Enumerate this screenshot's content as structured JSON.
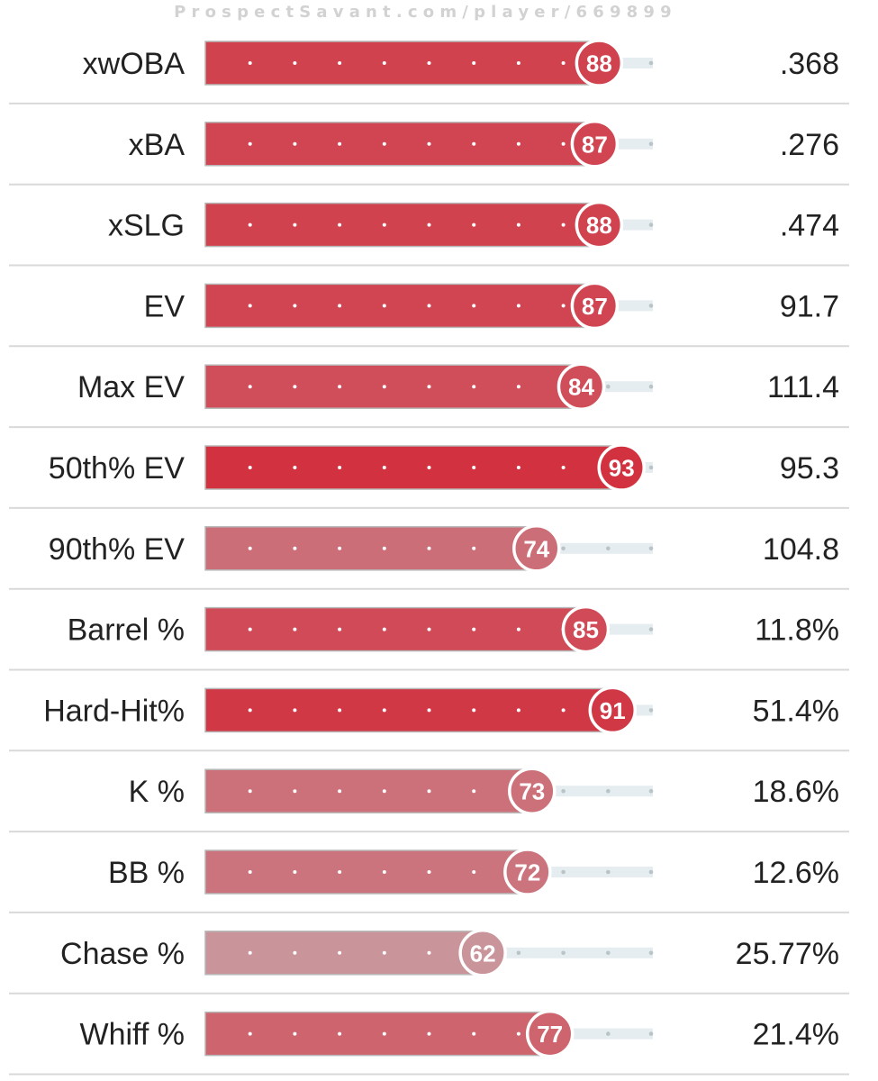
{
  "watermark": "ProspectSavant.com/player/669899",
  "colors": {
    "track": "#e6edf0",
    "track_dot": "#b9c4c9",
    "divider": "#d9d9d9",
    "bar_border": "#b7b7b7",
    "circle_border": "#ffffff",
    "scale_dark": "#d2323f",
    "scale_light": "#c89aa0"
  },
  "chart_data": {
    "type": "bar",
    "orientation": "horizontal",
    "x_range": [
      0,
      100
    ],
    "metrics": [
      {
        "label": "xwOBA",
        "percentile": 88,
        "value": ".368"
      },
      {
        "label": "xBA",
        "percentile": 87,
        "value": ".276"
      },
      {
        "label": "xSLG",
        "percentile": 88,
        "value": ".474"
      },
      {
        "label": "EV",
        "percentile": 87,
        "value": "91.7"
      },
      {
        "label": "Max EV",
        "percentile": 84,
        "value": "111.4"
      },
      {
        "label": "50th% EV",
        "percentile": 93,
        "value": "95.3"
      },
      {
        "label": "90th% EV",
        "percentile": 74,
        "value": "104.8"
      },
      {
        "label": "Barrel %",
        "percentile": 85,
        "value": "11.8%"
      },
      {
        "label": "Hard-Hit%",
        "percentile": 91,
        "value": "51.4%"
      },
      {
        "label": "K %",
        "percentile": 73,
        "value": "18.6%"
      },
      {
        "label": "BB %",
        "percentile": 72,
        "value": "12.6%"
      },
      {
        "label": "Chase %",
        "percentile": 62,
        "value": "25.77%"
      },
      {
        "label": "Whiff %",
        "percentile": 77,
        "value": "21.4%"
      }
    ]
  }
}
